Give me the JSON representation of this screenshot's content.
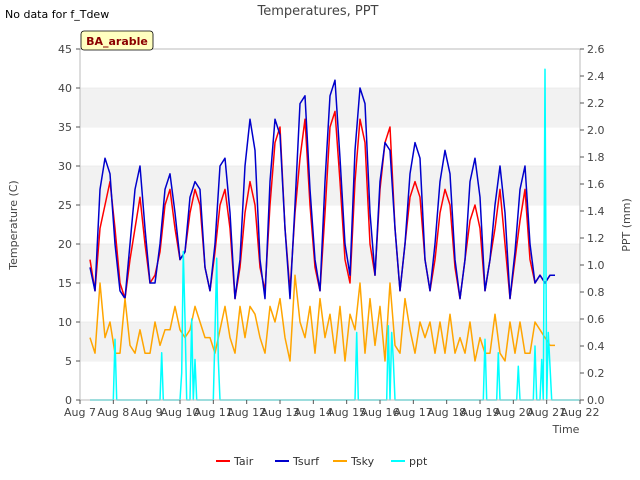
{
  "page": {
    "note": "No data for f_Tdew",
    "badge": "BA_arable"
  },
  "chart_data": {
    "type": "line",
    "title": "Temperatures, PPT",
    "xlabel": "Time",
    "ylabel": "Temperature (C)",
    "y2label": "PPT (mm)",
    "xlim": [
      7,
      22
    ],
    "ylim": [
      0,
      45
    ],
    "y2lim": [
      0,
      2.6
    ],
    "x_ticks": [
      "Aug 7",
      "Aug 8",
      "Aug 9",
      "Aug 10",
      "Aug 11",
      "Aug 12",
      "Aug 13",
      "Aug 14",
      "Aug 15",
      "Aug 16",
      "Aug 17",
      "Aug 18",
      "Aug 19",
      "Aug 20",
      "Aug 21",
      "Aug 22"
    ],
    "x_tick_values": [
      7,
      8,
      9,
      10,
      11,
      12,
      13,
      14,
      15,
      16,
      17,
      18,
      19,
      20,
      21,
      22
    ],
    "y_ticks": [
      0,
      5,
      10,
      15,
      20,
      25,
      30,
      35,
      40,
      45
    ],
    "y2_ticks": [
      "0.0",
      "0.2",
      "0.4",
      "0.6",
      "0.8",
      "1.0",
      "1.2",
      "1.4",
      "1.6",
      "1.8",
      "2.0",
      "2.2",
      "2.4",
      "2.6"
    ],
    "legend_position": "bottom",
    "grid": "horizontal bands",
    "series": [
      {
        "name": "Tair",
        "color": "#ff0000",
        "axis": "left",
        "x": [
          7.3,
          7.45,
          7.6,
          7.75,
          7.9,
          8.05,
          8.2,
          8.35,
          8.5,
          8.65,
          8.8,
          8.95,
          9.1,
          9.25,
          9.4,
          9.55,
          9.7,
          9.85,
          10,
          10.15,
          10.3,
          10.45,
          10.6,
          10.75,
          10.9,
          11.05,
          11.2,
          11.35,
          11.5,
          11.65,
          11.8,
          11.95,
          12.1,
          12.25,
          12.4,
          12.55,
          12.7,
          12.85,
          13,
          13.15,
          13.3,
          13.45,
          13.6,
          13.75,
          13.9,
          14.05,
          14.2,
          14.35,
          14.5,
          14.65,
          14.8,
          14.95,
          15.1,
          15.25,
          15.4,
          15.55,
          15.7,
          15.85,
          16,
          16.15,
          16.3,
          16.45,
          16.6,
          16.75,
          16.9,
          17.05,
          17.2,
          17.35,
          17.5,
          17.65,
          17.8,
          17.95,
          18.1,
          18.25,
          18.4,
          18.55,
          18.7,
          18.85,
          19,
          19.15,
          19.3,
          19.45,
          19.6,
          19.75,
          19.9,
          20.05,
          20.2,
          20.35,
          20.5,
          20.65,
          20.8,
          20.95,
          21.1,
          21.25
        ],
        "values": [
          18,
          14,
          22,
          25,
          28,
          22,
          15,
          13,
          18,
          22,
          26,
          20,
          15,
          16,
          19,
          25,
          27,
          22,
          18,
          19,
          24,
          27,
          25,
          17,
          14,
          19,
          25,
          27,
          22,
          13,
          17,
          24,
          28,
          25,
          17,
          14,
          25,
          33,
          35,
          22,
          14,
          24,
          31,
          36,
          25,
          17,
          14,
          24,
          35,
          37,
          28,
          18,
          15,
          28,
          36,
          33,
          20,
          16,
          27,
          33,
          35,
          22,
          14,
          20,
          26,
          28,
          26,
          18,
          14,
          18,
          24,
          27,
          25,
          17,
          13,
          18,
          23,
          25,
          22,
          14,
          18,
          22,
          27,
          20,
          13,
          18,
          23,
          27,
          18,
          15,
          16,
          15,
          16,
          16
        ]
      },
      {
        "name": "Tsurf",
        "color": "#0000cc",
        "axis": "left",
        "x": [
          7.3,
          7.45,
          7.6,
          7.75,
          7.9,
          8.05,
          8.2,
          8.35,
          8.5,
          8.65,
          8.8,
          8.95,
          9.1,
          9.25,
          9.4,
          9.55,
          9.7,
          9.85,
          10,
          10.15,
          10.3,
          10.45,
          10.6,
          10.75,
          10.9,
          11.05,
          11.2,
          11.35,
          11.5,
          11.65,
          11.8,
          11.95,
          12.1,
          12.25,
          12.4,
          12.55,
          12.7,
          12.85,
          13,
          13.15,
          13.3,
          13.45,
          13.6,
          13.75,
          13.9,
          14.05,
          14.2,
          14.35,
          14.5,
          14.65,
          14.8,
          14.95,
          15.1,
          15.25,
          15.4,
          15.55,
          15.7,
          15.85,
          16,
          16.15,
          16.3,
          16.45,
          16.6,
          16.75,
          16.9,
          17.05,
          17.2,
          17.35,
          17.5,
          17.65,
          17.8,
          17.95,
          18.1,
          18.25,
          18.4,
          18.55,
          18.7,
          18.85,
          19,
          19.15,
          19.3,
          19.45,
          19.6,
          19.75,
          19.9,
          20.05,
          20.2,
          20.35,
          20.5,
          20.65,
          20.8,
          20.95,
          21.1,
          21.25
        ],
        "values": [
          17,
          14,
          27,
          31,
          29,
          20,
          14,
          13,
          20,
          27,
          30,
          22,
          15,
          15,
          20,
          27,
          29,
          24,
          18,
          19,
          26,
          28,
          27,
          17,
          14,
          20,
          30,
          31,
          24,
          13,
          18,
          30,
          36,
          32,
          18,
          13,
          28,
          36,
          34,
          22,
          13,
          25,
          38,
          39,
          27,
          18,
          14,
          28,
          39,
          41,
          31,
          20,
          16,
          32,
          40,
          38,
          24,
          16,
          28,
          33,
          32,
          22,
          14,
          20,
          29,
          33,
          31,
          18,
          14,
          20,
          28,
          32,
          29,
          18,
          13,
          18,
          28,
          31,
          26,
          14,
          18,
          25,
          30,
          24,
          13,
          19,
          27,
          30,
          20,
          15,
          16,
          15,
          16,
          16
        ]
      },
      {
        "name": "Tsky",
        "color": "#ffa500",
        "axis": "left",
        "x": [
          7.3,
          7.45,
          7.6,
          7.75,
          7.9,
          8.05,
          8.2,
          8.35,
          8.5,
          8.65,
          8.8,
          8.95,
          9.1,
          9.25,
          9.4,
          9.55,
          9.7,
          9.85,
          10,
          10.15,
          10.3,
          10.45,
          10.6,
          10.75,
          10.9,
          11.05,
          11.2,
          11.35,
          11.5,
          11.65,
          11.8,
          11.95,
          12.1,
          12.25,
          12.4,
          12.55,
          12.7,
          12.85,
          13,
          13.15,
          13.3,
          13.45,
          13.6,
          13.75,
          13.9,
          14.05,
          14.2,
          14.35,
          14.5,
          14.65,
          14.8,
          14.95,
          15.1,
          15.25,
          15.4,
          15.55,
          15.7,
          15.85,
          16,
          16.15,
          16.3,
          16.45,
          16.6,
          16.75,
          16.9,
          17.05,
          17.2,
          17.35,
          17.5,
          17.65,
          17.8,
          17.95,
          18.1,
          18.25,
          18.4,
          18.55,
          18.7,
          18.85,
          19,
          19.15,
          19.3,
          19.45,
          19.6,
          19.75,
          19.9,
          20.05,
          20.2,
          20.35,
          20.5,
          20.65,
          20.8,
          20.95,
          21.1,
          21.25
        ],
        "values": [
          8,
          6,
          15,
          8,
          10,
          6,
          6,
          13,
          7,
          6,
          9,
          6,
          6,
          10,
          7,
          9,
          9,
          12,
          9,
          8,
          9,
          12,
          10,
          8,
          8,
          6,
          9,
          12,
          8,
          6,
          12,
          8,
          12,
          11,
          8,
          6,
          12,
          10,
          13,
          8,
          5,
          16,
          10,
          8,
          12,
          6,
          13,
          8,
          11,
          6,
          12,
          5,
          11,
          9,
          15,
          6,
          13,
          7,
          12,
          5,
          15,
          7,
          6,
          13,
          9,
          6,
          10,
          8,
          10,
          6,
          10,
          6,
          11,
          6,
          8,
          6,
          10,
          5,
          8,
          6,
          6,
          11,
          6,
          5,
          10,
          6,
          10,
          6,
          6,
          10,
          9,
          8,
          7,
          7
        ]
      },
      {
        "name": "ppt",
        "color": "#00ffff",
        "axis": "right",
        "x": [
          7.3,
          7.9,
          8.0,
          8.05,
          8.1,
          9.0,
          9.4,
          9.45,
          9.5,
          10,
          10.05,
          10.1,
          10.15,
          10.2,
          10.3,
          10.35,
          10.4,
          10.45,
          10.5,
          11,
          11.05,
          11.1,
          11.15,
          11.2,
          11.25,
          11.3,
          12,
          15,
          15.25,
          15.3,
          15.35,
          16,
          16.2,
          16.25,
          16.3,
          16.35,
          16.4,
          16.45,
          17,
          19,
          19.1,
          19.15,
          19.2,
          19.5,
          19.55,
          19.6,
          20,
          20.1,
          20.15,
          20.2,
          20.6,
          20.65,
          20.7,
          20.8,
          20.85,
          20.9,
          20.95,
          21.0,
          21.05,
          21.1,
          21.15,
          21.2,
          22
        ],
        "values": [
          0,
          0,
          0,
          0.45,
          0,
          0,
          0,
          0.35,
          0,
          0,
          0.2,
          1.1,
          0.6,
          0,
          0,
          0.6,
          0,
          0.3,
          0,
          0,
          0.5,
          1.05,
          0.3,
          0,
          0,
          0,
          0,
          0,
          0,
          0.5,
          0,
          0,
          0,
          0.55,
          0,
          0.5,
          0.3,
          0,
          0,
          0,
          0,
          0.45,
          0,
          0,
          0.35,
          0,
          0,
          0,
          0.25,
          0,
          0,
          0.4,
          0,
          0,
          0.3,
          0,
          2.45,
          0,
          0.5,
          0.25,
          0,
          0,
          0
        ]
      }
    ]
  }
}
